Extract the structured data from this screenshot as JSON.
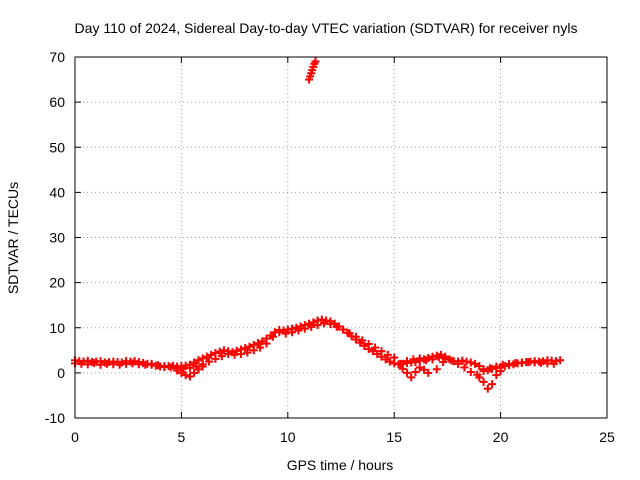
{
  "chart_data": {
    "type": "scatter",
    "title": "Day 110 of 2024, Sidereal Day-to-day VTEC variation (SDTVAR) for receiver nyls",
    "xlabel": "GPS time / hours",
    "ylabel": "SDTVAR / TECUs",
    "xlim": [
      0,
      25
    ],
    "ylim": [
      -10,
      70
    ],
    "xticks": [
      0,
      5,
      10,
      15,
      20,
      25
    ],
    "yticks": [
      -10,
      0,
      10,
      20,
      30,
      40,
      50,
      60,
      70
    ],
    "grid": true,
    "marker": "+",
    "color": "#ff0000",
    "series": [
      {
        "name": "SDTVAR",
        "x": [
          0.0,
          0.2,
          0.4,
          0.6,
          0.8,
          1.0,
          1.2,
          1.4,
          1.6,
          1.8,
          2.0,
          2.2,
          2.4,
          2.6,
          2.8,
          3.0,
          3.2,
          3.4,
          3.6,
          3.8,
          4.0,
          4.2,
          4.4,
          4.6,
          4.8,
          5.0,
          5.2,
          5.4,
          5.6,
          5.8,
          6.0,
          6.2,
          6.4,
          6.6,
          6.8,
          7.0,
          7.2,
          7.4,
          7.6,
          7.8,
          8.0,
          8.2,
          8.4,
          8.6,
          8.8,
          9.0,
          9.2,
          9.4,
          9.6,
          9.8,
          10.0,
          10.2,
          10.4,
          10.6,
          10.8,
          11.0,
          11.2,
          11.4,
          11.6,
          11.8,
          12.0,
          12.2,
          12.4,
          12.6,
          12.8,
          13.0,
          13.2,
          13.4,
          13.6,
          13.8,
          14.0,
          14.2,
          14.4,
          14.6,
          14.8,
          15.0,
          15.2,
          15.4,
          15.6,
          15.8,
          16.0,
          16.2,
          16.4,
          16.6,
          16.8,
          17.0,
          17.2,
          17.4,
          17.6,
          17.8,
          18.0,
          18.2,
          18.4,
          18.6,
          18.8,
          19.0,
          19.2,
          19.4,
          19.6,
          19.8,
          20.0,
          20.2,
          20.4,
          20.6,
          20.8,
          21.0,
          21.2,
          21.4,
          21.6,
          21.8,
          22.0,
          22.2,
          22.4,
          22.6,
          22.8,
          0.0,
          0.3,
          0.6,
          0.9,
          1.2,
          1.5,
          1.8,
          2.1,
          2.4,
          2.7,
          3.0,
          3.3,
          3.6,
          3.9,
          4.2,
          4.5,
          4.8,
          5.1,
          5.4,
          5.7,
          6.0,
          6.3,
          6.6,
          6.9,
          7.2,
          7.5,
          7.8,
          8.1,
          8.4,
          8.7,
          9.0,
          9.3,
          9.6,
          9.9,
          10.2,
          10.5,
          10.8,
          11.1,
          11.4,
          11.7,
          12.0,
          12.3,
          12.6,
          12.9,
          13.2,
          13.5,
          13.8,
          14.1,
          14.4,
          14.7,
          15.0,
          15.3,
          15.6,
          15.9,
          16.2,
          16.5,
          16.8,
          17.1,
          17.4,
          17.7,
          18.0,
          18.3,
          18.6,
          18.9,
          19.2,
          19.5,
          19.8,
          20.1,
          20.4,
          20.7,
          21.0,
          21.3,
          21.6,
          21.9,
          22.2,
          22.5,
          4.8,
          5.0,
          5.2,
          5.4,
          5.6,
          5.8,
          6.0,
          15.4,
          15.6,
          15.8,
          16.0,
          16.2,
          16.4,
          16.6,
          17.0,
          17.3,
          19.0,
          19.2,
          19.4,
          19.6,
          19.8,
          20.0,
          11.0,
          11.05,
          11.1,
          11.15,
          11.2,
          11.25,
          11.3
        ],
        "y": [
          2.8,
          2.6,
          2.5,
          2.7,
          2.4,
          2.5,
          2.6,
          2.3,
          2.4,
          2.5,
          2.4,
          2.3,
          2.6,
          2.5,
          2.6,
          2.4,
          2.2,
          2.0,
          1.8,
          1.6,
          1.4,
          1.3,
          1.5,
          1.6,
          1.4,
          1.5,
          1.6,
          1.8,
          2.3,
          2.8,
          3.2,
          3.6,
          4.0,
          4.4,
          4.7,
          5.0,
          4.8,
          4.6,
          4.9,
          5.2,
          5.5,
          5.8,
          6.2,
          6.6,
          7.0,
          7.6,
          8.3,
          9.0,
          9.5,
          9.4,
          9.6,
          9.8,
          10.0,
          10.3,
          10.6,
          10.9,
          11.2,
          11.6,
          11.8,
          11.6,
          11.4,
          10.9,
          10.3,
          9.6,
          8.9,
          8.1,
          7.4,
          6.7,
          6.0,
          5.3,
          4.8,
          4.2,
          3.6,
          3.0,
          2.5,
          2.1,
          1.9,
          2.0,
          2.2,
          2.3,
          2.4,
          2.7,
          3.0,
          3.3,
          3.6,
          3.8,
          4.0,
          3.6,
          3.0,
          2.6,
          2.5,
          2.7,
          2.5,
          2.3,
          2.0,
          1.5,
          0.8,
          0.6,
          0.9,
          1.1,
          1.3,
          1.5,
          1.7,
          1.9,
          2.1,
          2.3,
          2.4,
          2.5,
          2.6,
          2.5,
          2.6,
          2.8,
          2.7,
          2.6,
          2.8,
          2.1,
          2.0,
          1.9,
          2.2,
          1.8,
          2.0,
          1.9,
          1.8,
          2.0,
          2.1,
          1.9,
          1.8,
          2.0,
          1.7,
          1.5,
          1.2,
          1.0,
          0.9,
          1.1,
          1.4,
          1.9,
          2.5,
          3.1,
          3.7,
          4.2,
          4.0,
          4.2,
          4.5,
          5.0,
          5.6,
          6.5,
          8.0,
          9.0,
          8.7,
          9.0,
          9.4,
          9.8,
          10.2,
          10.6,
          11.0,
          10.8,
          10.2,
          9.6,
          8.8,
          8.0,
          7.2,
          6.4,
          5.6,
          4.8,
          4.0,
          3.4,
          2.0,
          2.6,
          3.0,
          3.2,
          2.8,
          3.0,
          3.5,
          3.2,
          2.7,
          2.0,
          1.2,
          0.2,
          -0.4,
          0.4,
          1.0,
          1.4,
          1.8,
          2.0,
          2.2,
          2.2,
          2.4,
          2.3,
          2.2,
          2.1,
          2.0,
          0.5,
          0.0,
          -0.5,
          -0.8,
          0.0,
          0.8,
          1.4,
          0.9,
          0.0,
          -1.0,
          0.2,
          1.2,
          0.7,
          0.0,
          0.8,
          2.4,
          -1.0,
          -2.0,
          -3.5,
          -2.5,
          -0.5,
          0.4,
          65.0,
          65.7,
          66.4,
          67.1,
          67.8,
          68.5,
          69.0
        ]
      }
    ]
  }
}
